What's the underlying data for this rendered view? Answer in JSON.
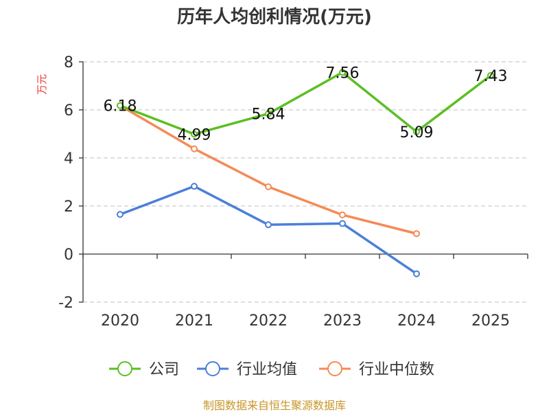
{
  "chart_data": {
    "type": "line",
    "title": "历年人均创利情况(万元)",
    "ylabel": "万元",
    "xlabel": "",
    "categories": [
      "2020",
      "2021",
      "2022",
      "2023",
      "2024",
      "2025"
    ],
    "ylim": [
      -2,
      8
    ],
    "yticks": [
      -2,
      0,
      2,
      4,
      6,
      8
    ],
    "grid": true,
    "legend_position": "bottom",
    "series": [
      {
        "name": "公司",
        "color": "#5bbf21",
        "values": [
          6.18,
          4.99,
          5.84,
          7.56,
          5.09,
          7.43
        ],
        "labels": [
          "6.18",
          "4.99",
          "5.84",
          "7.56",
          "5.09",
          "7.43"
        ]
      },
      {
        "name": "行业均值",
        "color": "#4b7fd9",
        "values": [
          1.65,
          2.82,
          1.22,
          1.27,
          -0.82,
          null
        ]
      },
      {
        "name": "行业中位数",
        "color": "#f58a55",
        "values": [
          6.18,
          4.38,
          2.8,
          1.63,
          0.85,
          null
        ]
      }
    ],
    "source": "制图数据来自恒生聚源数据库"
  }
}
